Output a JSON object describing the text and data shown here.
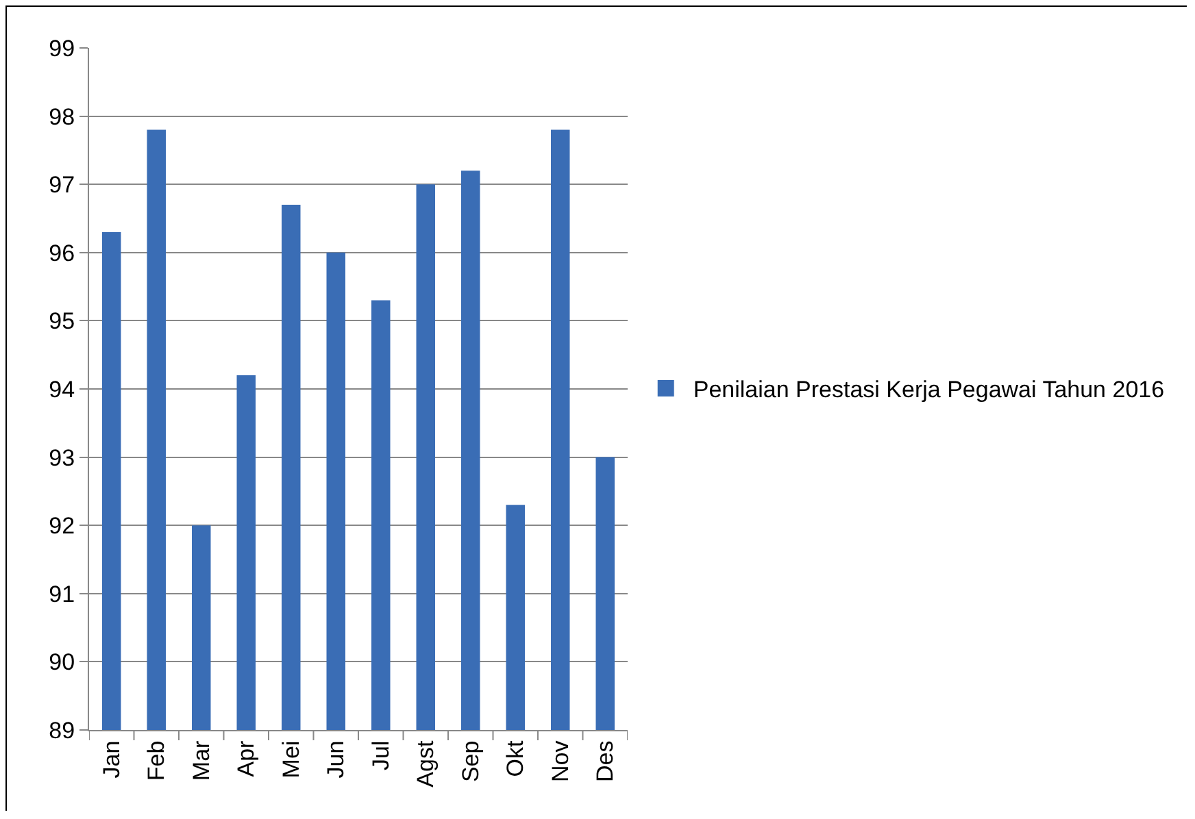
{
  "chart_data": {
    "type": "bar",
    "categories": [
      "Jan",
      "Feb",
      "Mar",
      "Apr",
      "Mei",
      "Jun",
      "Jul",
      "Agst",
      "Sep",
      "Okt",
      "Nov",
      "Des"
    ],
    "series": [
      {
        "name": "Penilaian Prestasi Kerja Pegawai Tahun 2016",
        "color": "#3a6db5",
        "values": [
          96.3,
          97.8,
          92,
          94.2,
          96.7,
          96,
          95.3,
          97,
          97.2,
          92.3,
          97.8,
          93
        ]
      }
    ],
    "ylim": [
      89,
      99
    ],
    "yticks": [
      89,
      90,
      91,
      92,
      93,
      94,
      95,
      96,
      97,
      98,
      99
    ],
    "grid": "y",
    "legend": "right"
  }
}
